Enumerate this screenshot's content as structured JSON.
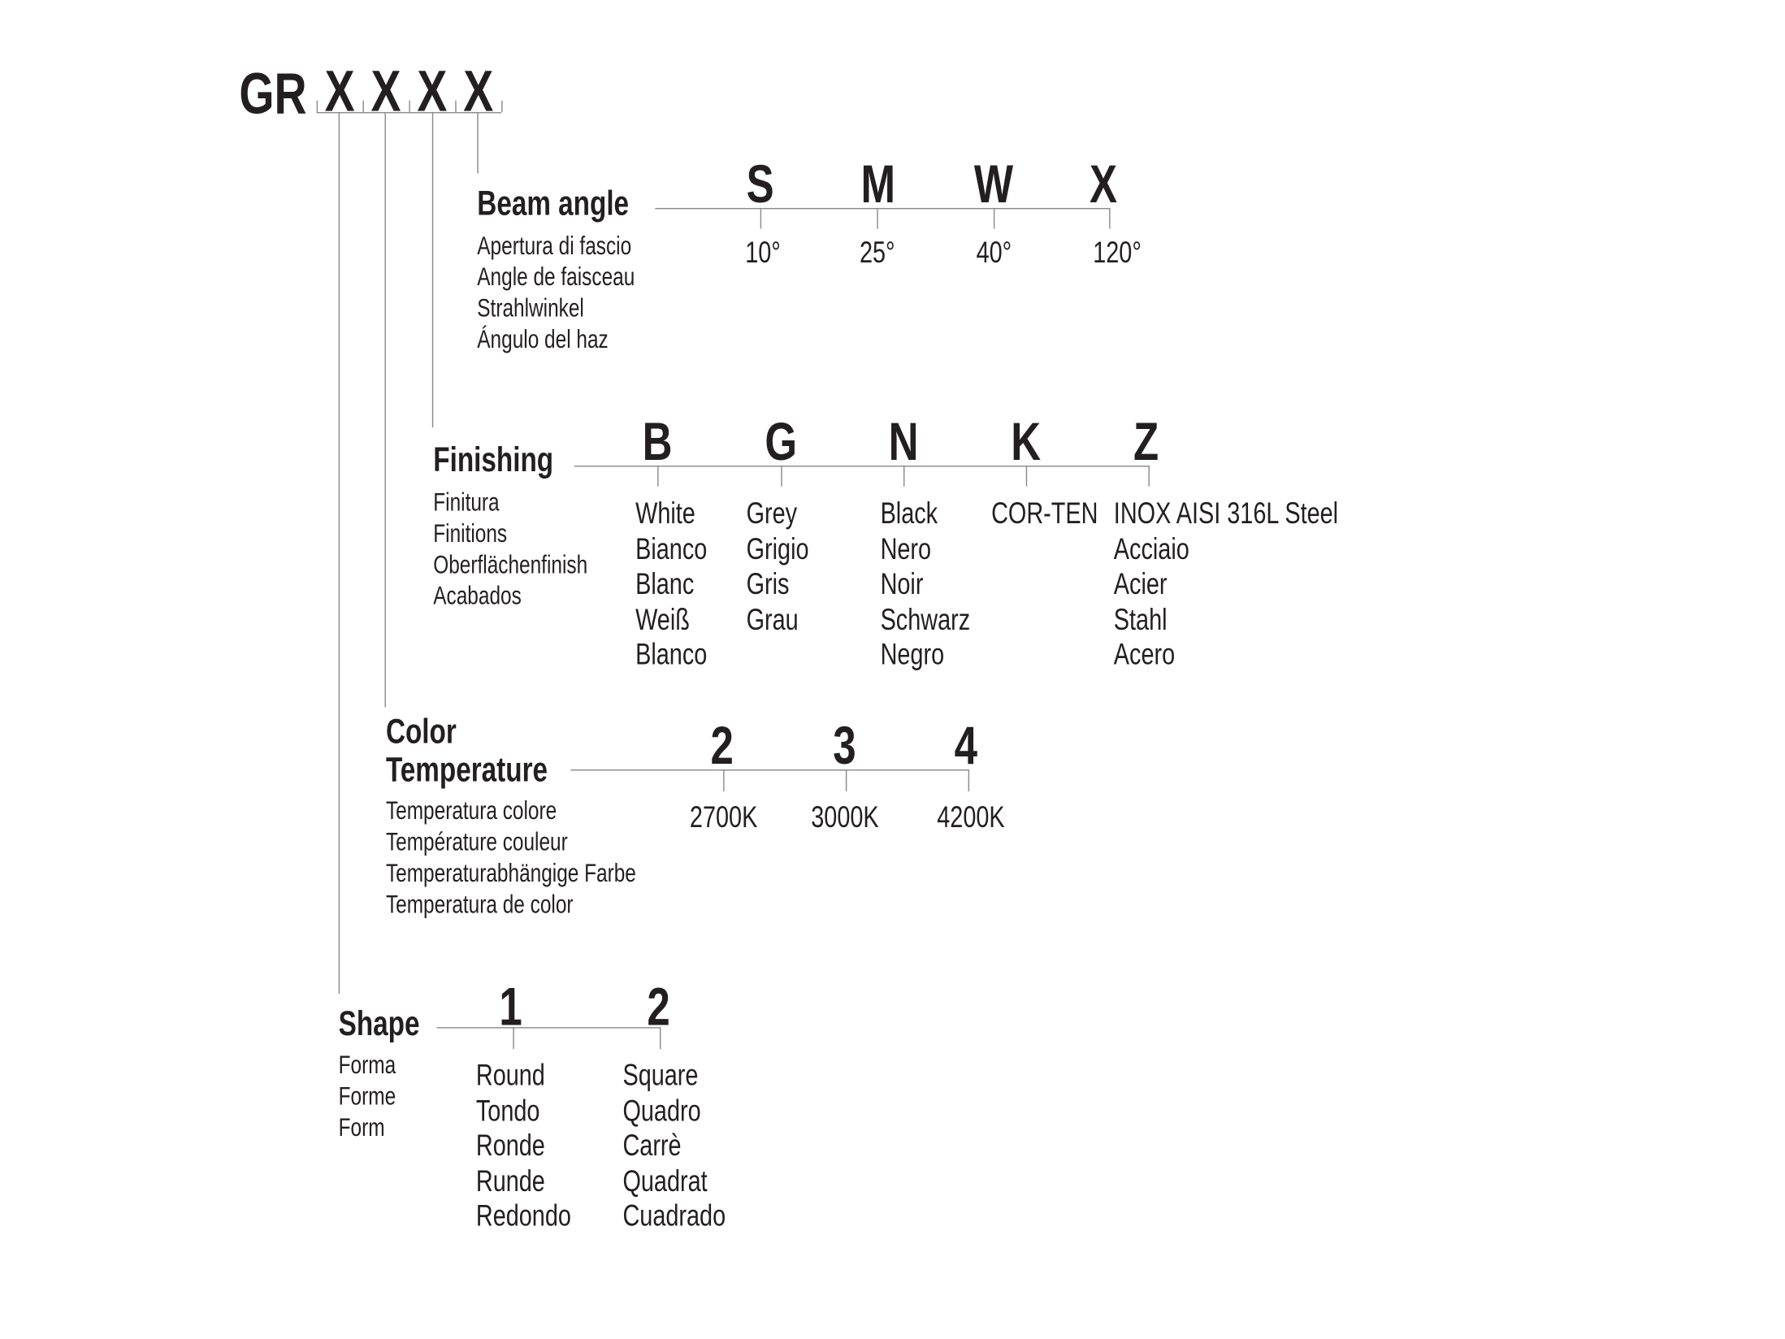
{
  "code": {
    "prefix": "GR",
    "slots": [
      "X",
      "X",
      "X",
      "X"
    ]
  },
  "beam_angle": {
    "title": "Beam angle",
    "translations": [
      "Apertura di fascio",
      "Angle de faisceau",
      "Strahlwinkel",
      "Ángulo del haz"
    ],
    "options": [
      {
        "code": "S",
        "values": [
          "10°"
        ]
      },
      {
        "code": "M",
        "values": [
          "25°"
        ]
      },
      {
        "code": "W",
        "values": [
          "40°"
        ]
      },
      {
        "code": "X",
        "values": [
          "120°"
        ]
      }
    ]
  },
  "finishing": {
    "title": "Finishing",
    "translations": [
      "Finitura",
      "Finitions",
      "Oberflächenfinish",
      "Acabados"
    ],
    "options": [
      {
        "code": "B",
        "values": [
          "White",
          "Bianco",
          "Blanc",
          "Weiß",
          "Blanco"
        ]
      },
      {
        "code": "G",
        "values": [
          "Grey",
          "Grigio",
          "Gris",
          "Grau"
        ]
      },
      {
        "code": "N",
        "values": [
          "Black",
          "Nero",
          "Noir",
          "Schwarz",
          "Negro"
        ]
      },
      {
        "code": "K",
        "values": [
          "COR-TEN"
        ]
      },
      {
        "code": "Z",
        "values": [
          "INOX AISI 316L Steel",
          "Acciaio",
          "Acier",
          "Stahl",
          "Acero"
        ]
      }
    ]
  },
  "color_temperature": {
    "title_line1": "Color",
    "title_line2": "Temperature",
    "translations": [
      "Temperatura colore",
      "Température couleur",
      "Temperaturabhängige Farbe",
      "Temperatura de color"
    ],
    "options": [
      {
        "code": "2",
        "values": [
          "2700K"
        ]
      },
      {
        "code": "3",
        "values": [
          "3000K"
        ]
      },
      {
        "code": "4",
        "values": [
          "4200K"
        ]
      }
    ]
  },
  "shape": {
    "title": "Shape",
    "translations": [
      "Forma",
      "Forme",
      "Form"
    ],
    "options": [
      {
        "code": "1",
        "values": [
          "Round",
          "Tondo",
          "Ronde",
          "Runde",
          "Redondo"
        ]
      },
      {
        "code": "2",
        "values": [
          "Square",
          "Quadro",
          "Carrè",
          "Quadrat",
          "Cuadrado"
        ]
      }
    ]
  }
}
